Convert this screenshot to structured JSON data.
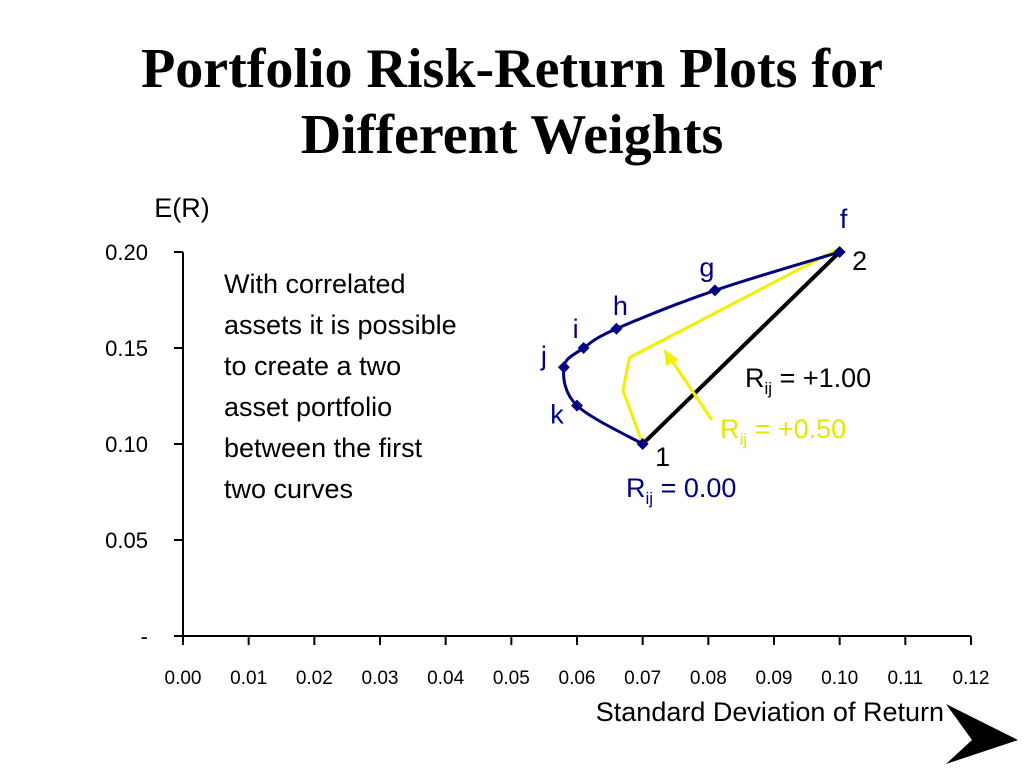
{
  "slide": {
    "title_lines": [
      "Portfolio Risk-Return Plots for",
      "Different Weights"
    ],
    "note_lines": [
      "With correlated",
      "assets it is possible",
      "to create a two",
      "asset portfolio",
      "between the first",
      "two curves"
    ]
  },
  "chart_data": {
    "type": "line",
    "title": "Portfolio Risk-Return Plots for Different Weights",
    "xlabel": "Standard Deviation of Return",
    "ylabel": "E(R)",
    "xlim": [
      0,
      0.12
    ],
    "ylim": [
      0,
      0.2
    ],
    "x_ticks": [
      {
        "v": 0.0,
        "label": "0.00"
      },
      {
        "v": 0.01,
        "label": "0.01"
      },
      {
        "v": 0.02,
        "label": "0.02"
      },
      {
        "v": 0.03,
        "label": "0.03"
      },
      {
        "v": 0.04,
        "label": "0.04"
      },
      {
        "v": 0.05,
        "label": "0.05"
      },
      {
        "v": 0.06,
        "label": "0.06"
      },
      {
        "v": 0.07,
        "label": "0.07"
      },
      {
        "v": 0.08,
        "label": "0.08"
      },
      {
        "v": 0.09,
        "label": "0.09"
      },
      {
        "v": 0.1,
        "label": "0.10"
      },
      {
        "v": 0.11,
        "label": "0.11"
      },
      {
        "v": 0.12,
        "label": "0.12"
      }
    ],
    "y_ticks": [
      {
        "v": 0.0,
        "label": "-"
      },
      {
        "v": 0.05,
        "label": "0.05"
      },
      {
        "v": 0.1,
        "label": "0.10"
      },
      {
        "v": 0.15,
        "label": "0.15"
      },
      {
        "v": 0.2,
        "label": "0.20"
      }
    ],
    "grid": false,
    "series": [
      {
        "name": "R = 0.00",
        "label_main": "R",
        "label_sub": "ij",
        "label_rest": " = 0.00",
        "color": "#000080",
        "smooth": true,
        "x": [
          0.07,
          0.06,
          0.058,
          0.061,
          0.066,
          0.081,
          0.1
        ],
        "y": [
          0.1,
          0.12,
          0.14,
          0.15,
          0.16,
          0.18,
          0.2
        ],
        "points": [
          {
            "x": 0.07,
            "y": 0.1,
            "label": ""
          },
          {
            "x": 0.06,
            "y": 0.12,
            "label": "k"
          },
          {
            "x": 0.058,
            "y": 0.14,
            "label": "j"
          },
          {
            "x": 0.061,
            "y": 0.15,
            "label": "i"
          },
          {
            "x": 0.066,
            "y": 0.16,
            "label": "h"
          },
          {
            "x": 0.081,
            "y": 0.18,
            "label": "g"
          },
          {
            "x": 0.1,
            "y": 0.2,
            "label": "f"
          }
        ]
      },
      {
        "name": "R = +0.50",
        "label_main": "R",
        "label_sub": "ij",
        "label_rest": " = +0.50",
        "color": "#f0f000",
        "smooth": false,
        "x": [
          0.07,
          0.067,
          0.068,
          0.1
        ],
        "y": [
          0.1,
          0.128,
          0.145,
          0.202
        ],
        "points": []
      },
      {
        "name": "R = +1.00",
        "label_main": "R",
        "label_sub": "ij",
        "label_rest": " = +1.00",
        "color": "#000000",
        "smooth": false,
        "x": [
          0.07,
          0.1
        ],
        "y": [
          0.1,
          0.2
        ],
        "points": []
      }
    ],
    "endpoint_labels": [
      {
        "text": "1",
        "x": 0.07,
        "y": 0.1
      },
      {
        "text": "2",
        "x": 0.1,
        "y": 0.2
      }
    ]
  }
}
